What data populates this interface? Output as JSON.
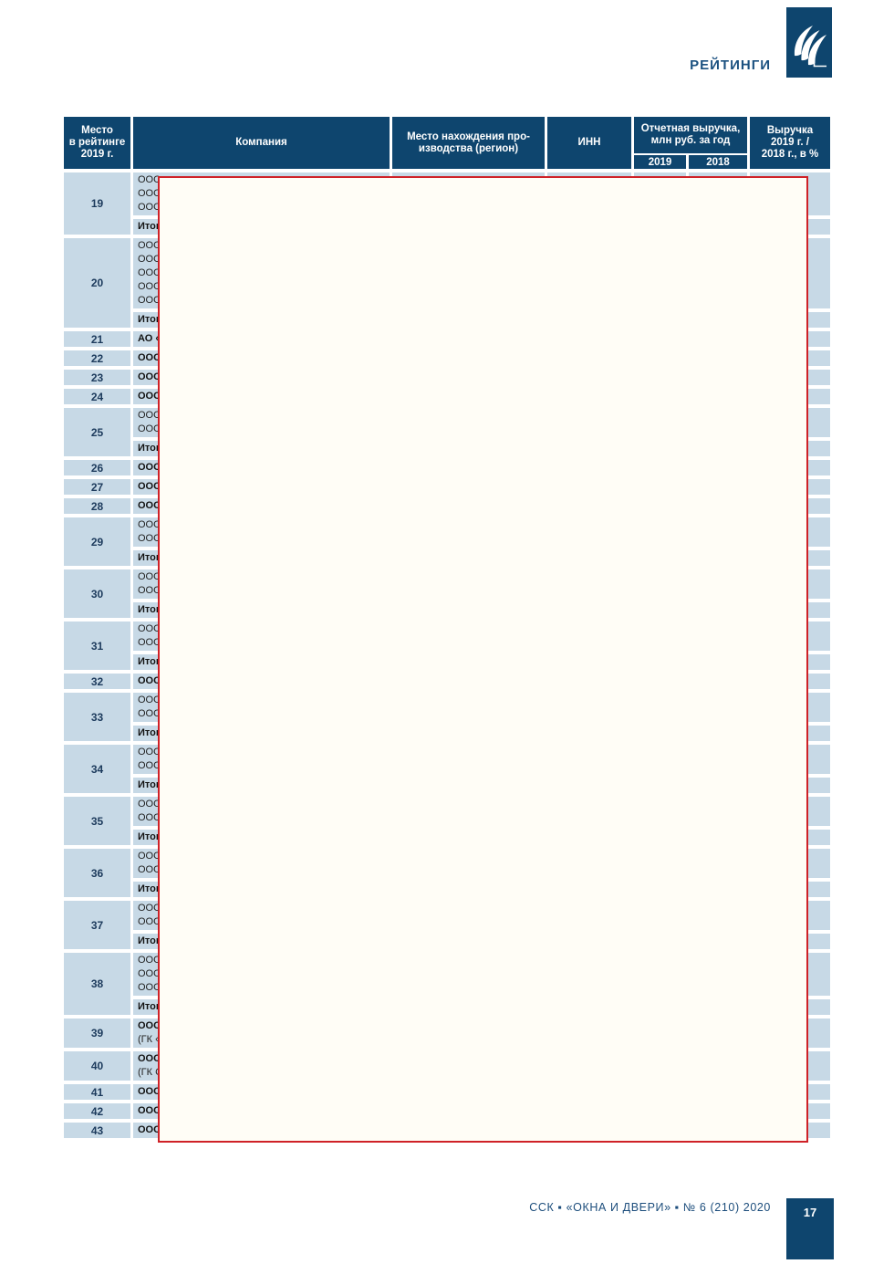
{
  "page": {
    "section_label": "РЕЙТИНГИ",
    "footer_text": "ССК ▪ «ОКНА И ДВЕРИ» ▪ № 6 (210) 2020",
    "page_number": "17"
  },
  "colors": {
    "header_navy": "#0e456e",
    "cell_blue": "#c7d9e6",
    "redaction_border_red": "#cf2127",
    "redaction_fill": "#fffdf6",
    "accent_navy": "#1b5180"
  },
  "icons": {
    "logo": "publisher-swoosh-icon"
  },
  "table": {
    "columns": {
      "rank": "Место\nв рейтинге\n2019 г.",
      "company": "Компания",
      "region": "Место нахождения про-\nизводства (регион)",
      "inn": "ИНН",
      "revenue_group": "Отчетная выручка,\nмлн руб. за год",
      "revenue_2019": "2019",
      "revenue_2018": "2018",
      "growth": "Выручка\n2019 г. /\n2018 г., в %"
    },
    "total_label": "Итог",
    "rows": [
      {
        "rank": "19",
        "type": "group",
        "lines": [
          {
            "text": "ООО",
            "bold": false
          },
          {
            "text": "ООО",
            "bold": false
          },
          {
            "text": "ООО",
            "bold": false
          }
        ],
        "itog": "Итог"
      },
      {
        "rank": "20",
        "type": "group",
        "lines": [
          {
            "text": "ООО",
            "bold": false
          },
          {
            "text": "ООО",
            "bold": false
          },
          {
            "text": "ООО",
            "bold": false
          },
          {
            "text": "ООО",
            "bold": false
          },
          {
            "text": "ООО",
            "bold": false
          }
        ],
        "itog": "Итог"
      },
      {
        "rank": "21",
        "type": "single",
        "lines": [
          {
            "text": "АО «",
            "bold": true
          }
        ]
      },
      {
        "rank": "22",
        "type": "single",
        "lines": [
          {
            "text": "ООО",
            "bold": true
          }
        ]
      },
      {
        "rank": "23",
        "type": "single",
        "lines": [
          {
            "text": "ООО",
            "bold": true
          }
        ]
      },
      {
        "rank": "24",
        "type": "single",
        "lines": [
          {
            "text": "ООО",
            "bold": true
          }
        ]
      },
      {
        "rank": "25",
        "type": "group",
        "lines": [
          {
            "text": "ООО",
            "bold": false
          },
          {
            "text": "ООО",
            "bold": false
          }
        ],
        "itog": "Итог"
      },
      {
        "rank": "26",
        "type": "single",
        "lines": [
          {
            "text": "ООО",
            "bold": true
          }
        ]
      },
      {
        "rank": "27",
        "type": "single",
        "lines": [
          {
            "text": "ООО",
            "bold": true
          }
        ]
      },
      {
        "rank": "28",
        "type": "single",
        "lines": [
          {
            "text": "ООО",
            "bold": true
          }
        ]
      },
      {
        "rank": "29",
        "type": "group",
        "lines": [
          {
            "text": "ООО",
            "bold": false
          },
          {
            "text": "ООО",
            "bold": false
          }
        ],
        "itog": "Итог"
      },
      {
        "rank": "30",
        "type": "group",
        "lines": [
          {
            "text": "ООО",
            "bold": false
          },
          {
            "text": "ООО",
            "bold": false
          }
        ],
        "itog": "Итог"
      },
      {
        "rank": "31",
        "type": "group",
        "lines": [
          {
            "text": "ООО",
            "bold": false
          },
          {
            "text": "ООО",
            "bold": false
          }
        ],
        "itog": "Итог"
      },
      {
        "rank": "32",
        "type": "single",
        "lines": [
          {
            "text": "ООО",
            "bold": true
          }
        ]
      },
      {
        "rank": "33",
        "type": "group",
        "lines": [
          {
            "text": "ООО",
            "bold": false
          },
          {
            "text": "ООО",
            "bold": false
          }
        ],
        "itog": "Итог"
      },
      {
        "rank": "34",
        "type": "group",
        "lines": [
          {
            "text": "ООО",
            "bold": false
          },
          {
            "text": "ООО",
            "bold": false
          }
        ],
        "itog": "Итог"
      },
      {
        "rank": "35",
        "type": "group",
        "lines": [
          {
            "text": "ООО",
            "bold": false
          },
          {
            "text": "ООО",
            "bold": false
          }
        ],
        "itog": "Итог"
      },
      {
        "rank": "36",
        "type": "group",
        "lines": [
          {
            "text": "ООО",
            "bold": false
          },
          {
            "text": "ООО",
            "bold": false
          }
        ],
        "itog": "Итог"
      },
      {
        "rank": "37",
        "type": "group",
        "lines": [
          {
            "text": "ООО",
            "bold": false
          },
          {
            "text": "ООО",
            "bold": false
          }
        ],
        "itog": "Итог"
      },
      {
        "rank": "38",
        "type": "group",
        "lines": [
          {
            "text": "ООО",
            "bold": false
          },
          {
            "text": "ООО",
            "bold": false
          },
          {
            "text": "ООО",
            "bold": false
          }
        ],
        "itog": "Итог"
      },
      {
        "rank": "39",
        "type": "single",
        "lines": [
          {
            "text": "ООО",
            "bold": true
          },
          {
            "text": "(ГК «",
            "bold": false
          }
        ]
      },
      {
        "rank": "40",
        "type": "single",
        "lines": [
          {
            "text": "ООО",
            "bold": true
          },
          {
            "text": "(ГК С",
            "bold": false
          }
        ]
      },
      {
        "rank": "41",
        "type": "single",
        "lines": [
          {
            "text": "ООО",
            "bold": true
          }
        ]
      },
      {
        "rank": "42",
        "type": "single",
        "lines": [
          {
            "text": "ООО",
            "bold": true
          }
        ]
      },
      {
        "rank": "43",
        "type": "single",
        "lines": [
          {
            "text": "ООО",
            "bold": true
          }
        ]
      }
    ]
  }
}
